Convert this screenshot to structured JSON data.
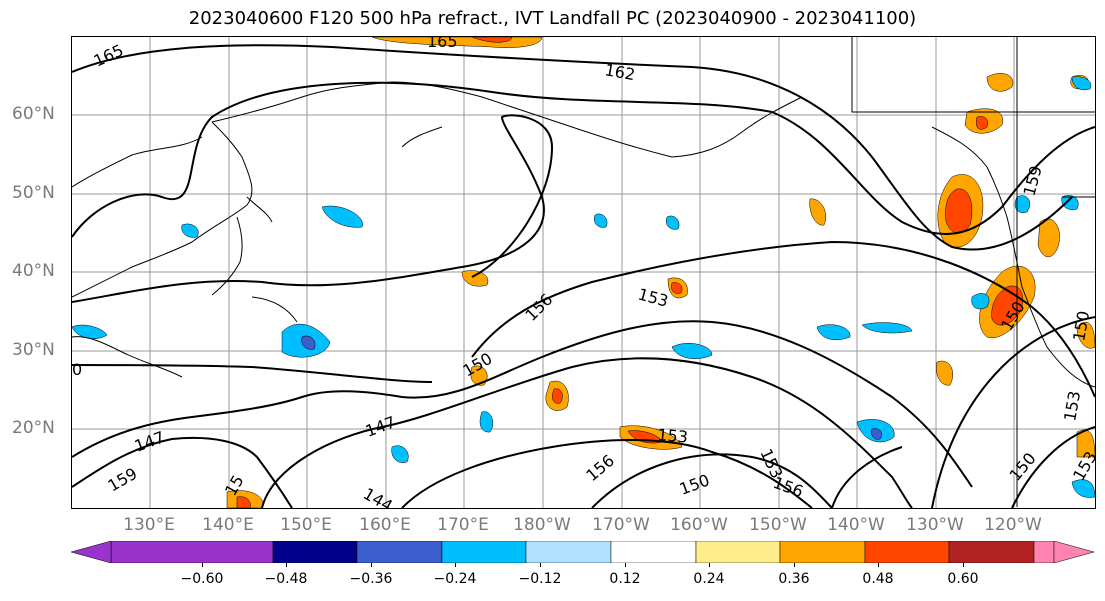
{
  "title": "2023040600 F120 500 hPa refract., IVT Landfall PC (2023040900 - 2023041100)",
  "lat_labels": [
    "60°N",
    "50°N",
    "40°N",
    "30°N",
    "20°N"
  ],
  "lon_labels": [
    "130°E",
    "140°E",
    "150°E",
    "160°E",
    "170°E",
    "180°W",
    "170°W",
    "160°W",
    "150°W",
    "140°W",
    "130°W",
    "120°W"
  ],
  "colorbar": {
    "colors": [
      "#9933cc",
      "#00008b",
      "#3a5fcd",
      "#00bfff",
      "#b0e2ff",
      "#ffffff",
      "#ffec8b",
      "#ffa500",
      "#ff4500",
      "#b22222",
      "#ff83b0"
    ],
    "tick_labels": [
      "−0.60",
      "−0.48",
      "−0.36",
      "−0.24",
      "−0.12",
      "0.12",
      "0.24",
      "0.36",
      "0.48",
      "0.60"
    ]
  },
  "contour_labels": [
    "165",
    "162",
    "159",
    "156",
    "153",
    "150",
    "147",
    "144",
    "150",
    "153",
    "156",
    "153",
    "150",
    "147",
    "159",
    "150",
    "153",
    "150",
    "153",
    "15",
    "165",
    "156",
    "0"
  ]
}
